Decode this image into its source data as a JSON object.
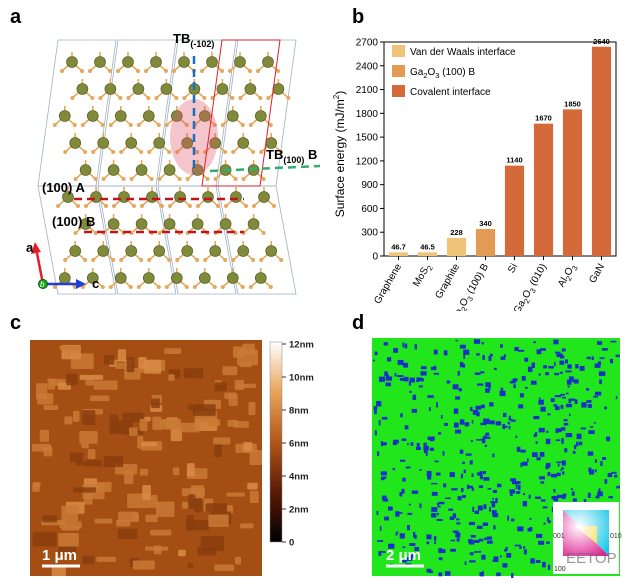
{
  "figure": {
    "panel_labels": [
      "a",
      "b",
      "c",
      "d"
    ]
  },
  "panel_a": {
    "tb_top_label": "TB",
    "tb_top_sub": "(-102)",
    "tb_side_label": "TB",
    "tb_side_sub": "(100)",
    "tb_side_suffix": " B",
    "plane_a_label": "(100) A",
    "plane_b_label": "(100) B",
    "axis_a": "a",
    "axis_b": "b",
    "axis_c": "c",
    "colors": {
      "ga": "#7f8a3a",
      "o": "#e6a85c",
      "tb_blue": "#1a6ec4",
      "tb_green": "#2fae6e",
      "plane": "#c0141a"
    }
  },
  "chart_data": {
    "type": "bar",
    "categories": [
      "Graphene",
      "MoS2",
      "Graphite",
      "Ga2O3 (100) B",
      "Si",
      "Ga2O3 (010)",
      "Al2O3",
      "GaN"
    ],
    "values": [
      46.7,
      46.5,
      228,
      340,
      1140,
      1670,
      1850,
      2640
    ],
    "value_labels": [
      "46.7",
      "46.5",
      "228",
      "340",
      "1140",
      "1670",
      "1850",
      "2640"
    ],
    "groups": [
      "vdw",
      "vdw",
      "vdw",
      "ga2o3",
      "cov",
      "cov",
      "cov",
      "cov"
    ],
    "ylabel": "Surface energy (mJ/m",
    "ylabel_sup": "2",
    "ylabel_end": ")",
    "ylim": [
      0,
      2700
    ],
    "yticks": [
      0,
      300,
      600,
      900,
      1200,
      1500,
      1800,
      2100,
      2400,
      2700
    ],
    "legend": [
      {
        "key": "vdw",
        "name": "Van der Waals interface",
        "color": "#f0c478"
      },
      {
        "key": "ga2o3",
        "name": "Ga2O3 (100) B",
        "color": "#e39a52"
      },
      {
        "key": "cov",
        "name": "Covalent interface",
        "color": "#d4693a"
      }
    ],
    "legend_position": "top-left",
    "grid": false
  },
  "panel_c": {
    "colorbar_ticks": [
      "12nm",
      "10nm",
      "8nm",
      "6nm",
      "4nm",
      "2nm",
      "0"
    ],
    "scalebar": "1 μm"
  },
  "panel_d": {
    "scalebar": "2 μm",
    "ipf_labels": [
      "001",
      "010",
      "100"
    ],
    "watermark": "EETOP",
    "colors": {
      "background": "#22e61c",
      "grains": "#1830c8"
    }
  }
}
